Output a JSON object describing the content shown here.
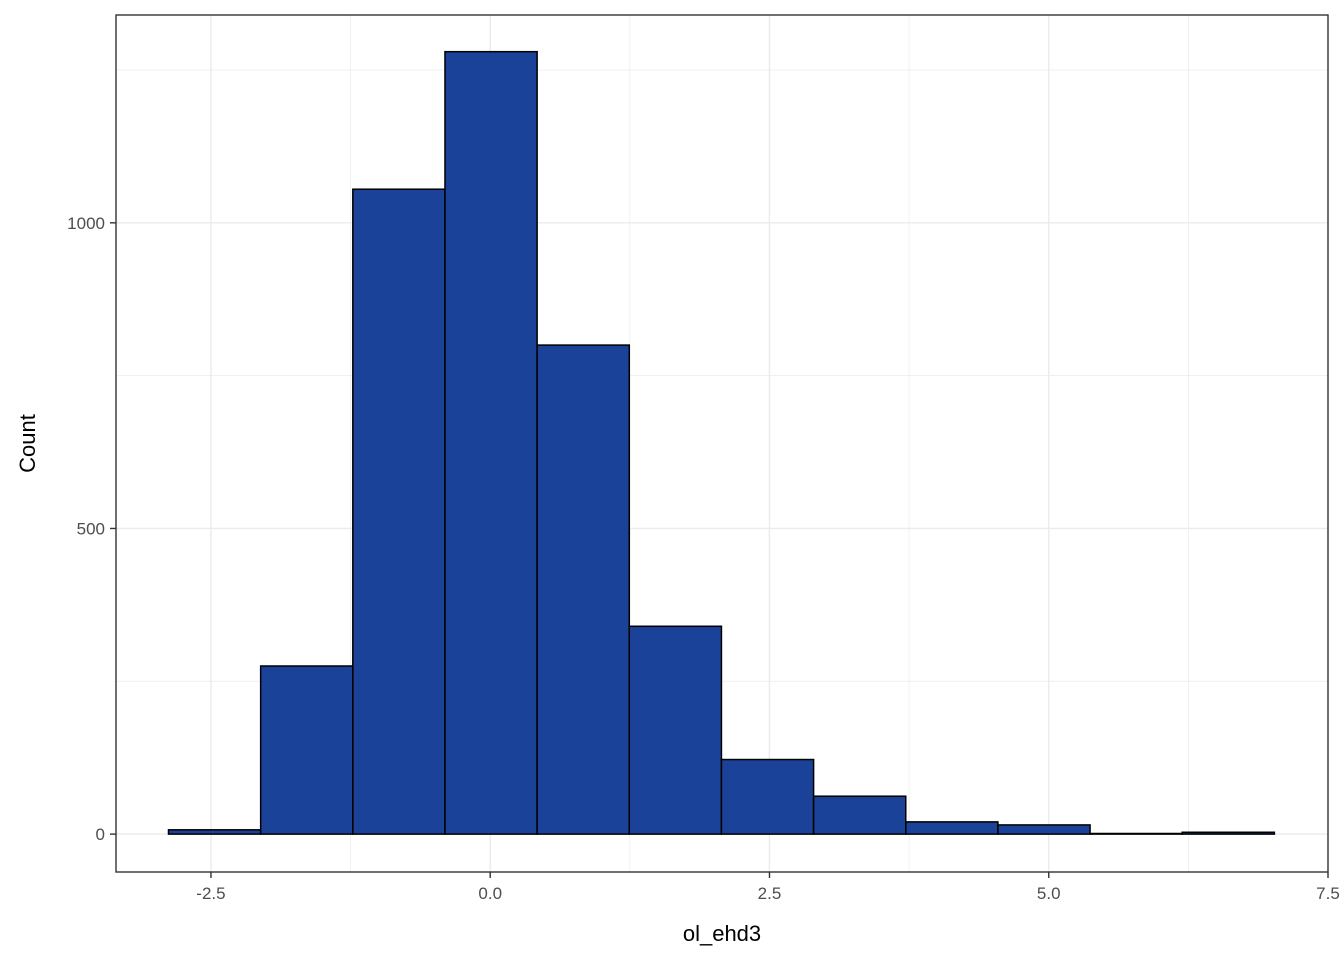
{
  "chart_data": {
    "type": "bar",
    "subtype": "histogram",
    "title": "",
    "xlabel": "ol_ehd3",
    "ylabel": "Count",
    "xlim": [
      -3.35,
      7.5
    ],
    "ylim": [
      -62,
      1340
    ],
    "x_ticks": [
      -2.5,
      0.0,
      2.5,
      5.0,
      7.5
    ],
    "x_tick_labels": [
      "-2.5",
      "0.0",
      "2.5",
      "5.0",
      "7.5"
    ],
    "y_ticks": [
      0,
      500,
      1000
    ],
    "y_tick_labels": [
      "0",
      "500",
      "1000"
    ],
    "grid": true,
    "legend": "none",
    "bin_edges": [
      -2.88,
      -2.055,
      -1.23,
      -0.405,
      0.42,
      1.245,
      2.07,
      2.895,
      3.72,
      4.545,
      5.37,
      6.195,
      7.02
    ],
    "values": [
      7,
      275,
      1055,
      1280,
      800,
      340,
      122,
      62,
      20,
      15,
      1,
      3
    ],
    "colors": {
      "bar_fill": "#1a4299",
      "bar_stroke": "#000000",
      "grid": "#ebebeb",
      "panel_border": "#333333"
    }
  }
}
